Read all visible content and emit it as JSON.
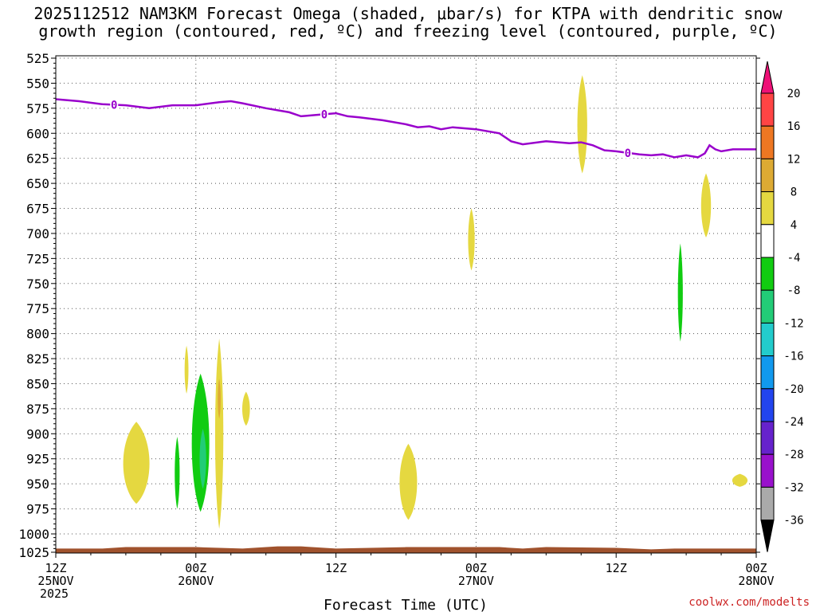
{
  "title_line1": "2025112512 NAM3KM Forecast Omega (shaded, μbar/s) for KTPA with dendritic snow",
  "title_line2": "growth region (contoured, red, ºC) and freezing level (contoured, purple, ºC)",
  "credit": "coolwx.com/modelts",
  "colors": {
    "freezing_line": "#9900cc",
    "terrain": "#a0522d",
    "grid": "#555555"
  },
  "chart_data": {
    "type": "heatmap",
    "xlabel": "Forecast Time (UTC)",
    "x_ticks": [
      {
        "hour": 0,
        "line1": "12Z",
        "line2": "25NOV",
        "line3": "2025"
      },
      {
        "hour": 12,
        "line1": "00Z",
        "line2": "26NOV",
        "line3": ""
      },
      {
        "hour": 24,
        "line1": "12Z",
        "line2": "",
        "line3": ""
      },
      {
        "hour": 36,
        "line1": "00Z",
        "line2": "27NOV",
        "line3": ""
      },
      {
        "hour": 48,
        "line1": "12Z",
        "line2": "",
        "line3": ""
      },
      {
        "hour": 60,
        "line1": "00Z",
        "line2": "28NOV",
        "line3": ""
      }
    ],
    "xlim": [
      0,
      60
    ],
    "y_ticks": [
      525,
      550,
      575,
      600,
      625,
      650,
      675,
      700,
      725,
      750,
      775,
      800,
      825,
      850,
      875,
      900,
      925,
      950,
      975,
      1000,
      1025
    ],
    "ylim": [
      525,
      1030
    ],
    "y_direction": "pressure-decreasing-upward",
    "colorbar": {
      "labels": [
        "20",
        "16",
        "12",
        "8",
        "4",
        "-4",
        "-8",
        "-12",
        "-16",
        "-20",
        "-24",
        "-28",
        "-32",
        "-36"
      ],
      "colors": [
        "#ff4444",
        "#ee7722",
        "#ddaa33",
        "#e5d840",
        "#ffffff",
        "#11cc11",
        "#22cc77",
        "#22cccc",
        "#1199ee",
        "#2244ee",
        "#6622cc",
        "#9911cc",
        "#aaaaaa"
      ],
      "top_arrow_color": "#ee1177",
      "bottom_arrow_color": "#000000"
    },
    "freezing_level": {
      "label": "0",
      "label_at_hours": [
        5,
        23,
        49
      ],
      "points": [
        [
          0,
          566
        ],
        [
          2,
          568
        ],
        [
          4,
          571
        ],
        [
          6,
          572
        ],
        [
          8,
          575
        ],
        [
          10,
          572
        ],
        [
          12,
          572
        ],
        [
          14,
          569
        ],
        [
          15,
          568
        ],
        [
          16,
          570
        ],
        [
          18,
          575
        ],
        [
          20,
          579
        ],
        [
          21,
          583
        ],
        [
          22,
          582
        ],
        [
          24,
          580
        ],
        [
          25,
          583
        ],
        [
          26,
          584
        ],
        [
          28,
          587
        ],
        [
          30,
          591
        ],
        [
          31,
          594
        ],
        [
          32,
          593
        ],
        [
          33,
          596
        ],
        [
          34,
          594
        ],
        [
          36,
          596
        ],
        [
          38,
          600
        ],
        [
          39,
          608
        ],
        [
          40,
          611
        ],
        [
          42,
          608
        ],
        [
          44,
          610
        ],
        [
          45,
          609
        ],
        [
          46,
          612
        ],
        [
          47,
          617
        ],
        [
          48,
          618
        ],
        [
          50,
          621
        ],
        [
          51,
          622
        ],
        [
          52,
          621
        ],
        [
          53,
          624
        ],
        [
          54,
          622
        ],
        [
          55,
          624
        ],
        [
          55.6,
          620
        ],
        [
          56,
          612
        ],
        [
          56.5,
          616
        ],
        [
          57,
          618
        ],
        [
          58,
          616
        ],
        [
          60,
          616
        ]
      ]
    },
    "omega_blobs": [
      {
        "value": 4,
        "hour": 6.9,
        "p_top": 888,
        "p_bot": 970,
        "width_h": 2.4
      },
      {
        "value": 4,
        "hour": 11.2,
        "p_top": 812,
        "p_bot": 860,
        "width_h": 0.35
      },
      {
        "value": -4,
        "hour": 10.4,
        "p_top": 903,
        "p_bot": 975,
        "width_h": 0.45
      },
      {
        "value": -4,
        "hour": 12.4,
        "p_top": 840,
        "p_bot": 978,
        "width_h": 1.6
      },
      {
        "value": -8,
        "hour": 12.6,
        "p_top": 895,
        "p_bot": 955,
        "width_h": 0.6
      },
      {
        "value": 4,
        "hour": 14.0,
        "p_top": 805,
        "p_bot": 995,
        "width_h": 0.75
      },
      {
        "value": 8,
        "hour": 14.0,
        "p_top": 845,
        "p_bot": 885,
        "width_h": 0.25
      },
      {
        "value": 4,
        "hour": 16.3,
        "p_top": 858,
        "p_bot": 892,
        "width_h": 0.7
      },
      {
        "value": 4,
        "hour": 30.2,
        "p_top": 910,
        "p_bot": 986,
        "width_h": 1.6
      },
      {
        "value": 4,
        "hour": 35.6,
        "p_top": 675,
        "p_bot": 737,
        "width_h": 0.6
      },
      {
        "value": 4,
        "hour": 45.1,
        "p_top": 542,
        "p_bot": 640,
        "width_h": 0.9
      },
      {
        "value": -4,
        "hour": 53.5,
        "p_top": 710,
        "p_bot": 808,
        "width_h": 0.45
      },
      {
        "value": 4,
        "hour": 55.7,
        "p_top": 640,
        "p_bot": 704,
        "width_h": 0.9
      },
      {
        "value": 4,
        "hour": 58.6,
        "p_top": 940,
        "p_bot": 953,
        "width_h": 1.4
      }
    ],
    "terrain_surface": [
      [
        0,
        1020
      ],
      [
        4,
        1020
      ],
      [
        6,
        1018
      ],
      [
        12,
        1018
      ],
      [
        16,
        1020
      ],
      [
        19,
        1017
      ],
      [
        21,
        1017
      ],
      [
        24,
        1020
      ],
      [
        30,
        1018
      ],
      [
        38,
        1018
      ],
      [
        40,
        1020
      ],
      [
        42,
        1018
      ],
      [
        48,
        1019
      ],
      [
        51,
        1021
      ],
      [
        53,
        1020
      ],
      [
        60,
        1020
      ]
    ]
  }
}
